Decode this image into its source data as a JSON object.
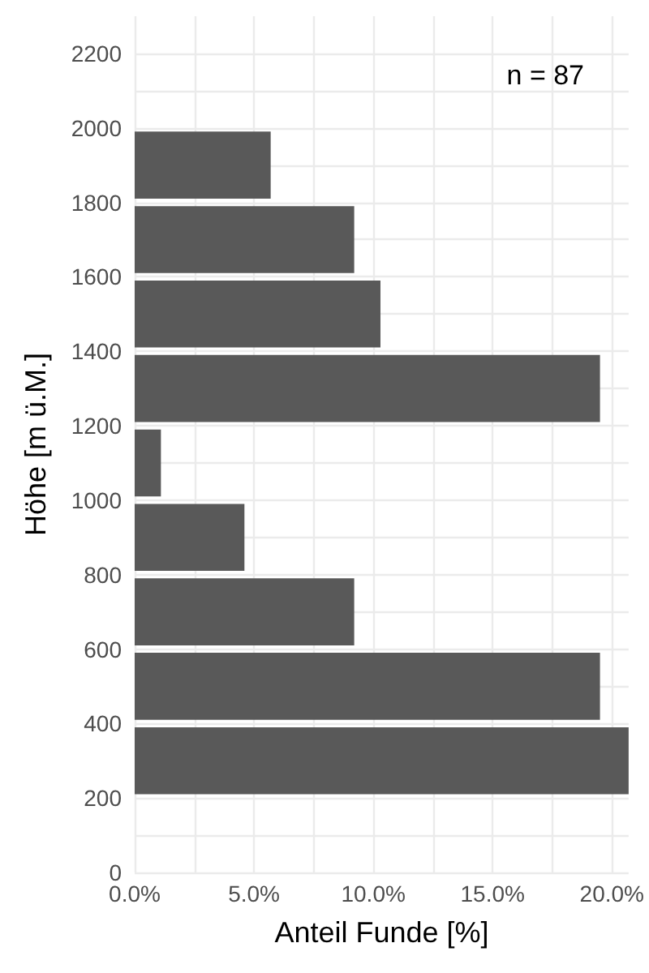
{
  "chart_data": {
    "type": "histogram",
    "orientation": "horizontal",
    "xlabel": "Anteil Funde [%]",
    "ylabel": "Höhe [m ü.M.]",
    "bins": [
      200,
      400,
      600,
      800,
      1000,
      1200,
      1400,
      1600,
      1800,
      2000
    ],
    "values": [
      20.7,
      19.5,
      9.2,
      4.6,
      1.1,
      19.5,
      10.3,
      9.2,
      5.7
    ],
    "color": "#595959",
    "xlim": [
      0,
      20.7
    ],
    "xticks": [
      {
        "value": 0,
        "label": "0.0%"
      },
      {
        "value": 2.5,
        "label": null
      },
      {
        "value": 5,
        "label": "5.0%"
      },
      {
        "value": 7.5,
        "label": null
      },
      {
        "value": 10,
        "label": "10.0%"
      },
      {
        "value": 12.5,
        "label": null
      },
      {
        "value": 15,
        "label": "15.0%"
      },
      {
        "value": 17.5,
        "label": null
      },
      {
        "value": 20,
        "label": "20.0%"
      }
    ],
    "ylim": [
      0,
      2300
    ],
    "yticks": [
      0,
      {
        "value": 100,
        "label": null
      },
      200,
      400,
      {
        "value": 500,
        "label": null
      },
      600,
      {
        "value": 700,
        "label": null
      },
      800,
      {
        "value": 900,
        "label": null
      },
      1000,
      {
        "value": 1100,
        "label": null
      },
      1200,
      {
        "value": 1300,
        "label": null
      },
      1400,
      {
        "value": 1500,
        "label": null
      },
      1600,
      {
        "value": 1700,
        "label": null
      },
      1800,
      {
        "value": 1900,
        "label": null
      },
      2000,
      {
        "value": 2100,
        "label": null
      },
      2200
    ],
    "grid": true,
    "annotations": [
      "n = 87"
    ]
  }
}
